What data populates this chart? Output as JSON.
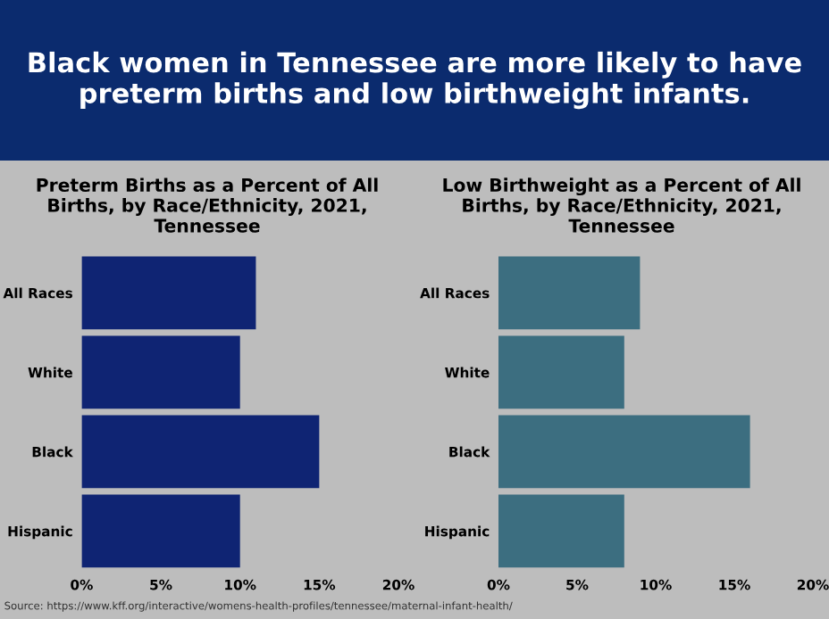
{
  "chart_data": [
    {
      "type": "other",
      "title": "Black women in Tennessee are more likely to have preterm births and low birthweight infants.",
      "annotations": [
        "Source: https://www.kff.org/interactive/womens-health-profiles/tennessee/maternal-infant-health/"
      ]
    },
    {
      "type": "bar",
      "orientation": "horizontal",
      "title": "Preterm Births as a Percent of All Births, by Race/Ethnicity, 2021, Tennessee",
      "categories": [
        "All Races",
        "White",
        "Black",
        "Hispanic"
      ],
      "values": [
        11,
        10,
        15,
        10
      ],
      "color": "#0f2473",
      "xlim": [
        0,
        20
      ],
      "xticks": [
        {
          "value": 0,
          "label": "0%"
        },
        {
          "value": 5,
          "label": "5%"
        },
        {
          "value": 10,
          "label": "10%"
        },
        {
          "value": 15,
          "label": "15%"
        },
        {
          "value": 20,
          "label": "20%"
        }
      ],
      "grid": false
    },
    {
      "type": "bar",
      "orientation": "horizontal",
      "title": "Low Birthweight as a Percent of All Births, by Race/Ethnicity, 2021, Tennessee",
      "categories": [
        "All Races",
        "White",
        "Black",
        "Hispanic"
      ],
      "values": [
        9,
        8,
        16,
        8
      ],
      "color": "#3c6e80",
      "xlim": [
        0,
        20
      ],
      "xticks": [
        {
          "value": 0,
          "label": "0%"
        },
        {
          "value": 5,
          "label": "5%"
        },
        {
          "value": 10,
          "label": "10%"
        },
        {
          "value": 15,
          "label": "15%"
        },
        {
          "value": 20,
          "label": "20%"
        }
      ],
      "grid": false
    }
  ]
}
